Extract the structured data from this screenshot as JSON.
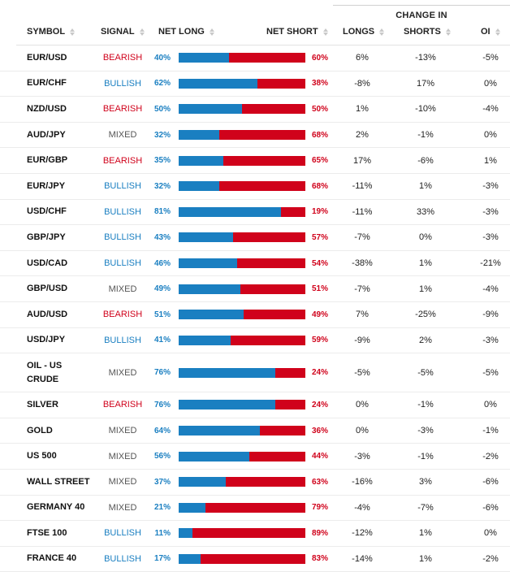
{
  "header": {
    "change_in": "CHANGE IN",
    "columns": {
      "symbol": "SYMBOL",
      "signal": "SIGNAL",
      "net_long": "NET LONG",
      "net_short": "NET SHORT",
      "longs": "LONGS",
      "shorts": "SHORTS",
      "oi": "OI"
    }
  },
  "colors": {
    "bullish": "#1a7fc1",
    "bearish": "#d0021b",
    "mixed": "#555555"
  },
  "rows": [
    {
      "symbol": "EUR/USD",
      "signal": "BEARISH",
      "net_long": "40%",
      "net_short": "60%",
      "long_value": 40,
      "longs": "6%",
      "shorts": "-13%",
      "oi": "-5%"
    },
    {
      "symbol": "EUR/CHF",
      "signal": "BULLISH",
      "net_long": "62%",
      "net_short": "38%",
      "long_value": 62,
      "longs": "-8%",
      "shorts": "17%",
      "oi": "0%"
    },
    {
      "symbol": "NZD/USD",
      "signal": "BEARISH",
      "net_long": "50%",
      "net_short": "50%",
      "long_value": 50,
      "longs": "1%",
      "shorts": "-10%",
      "oi": "-4%"
    },
    {
      "symbol": "AUD/JPY",
      "signal": "MIXED",
      "net_long": "32%",
      "net_short": "68%",
      "long_value": 32,
      "longs": "2%",
      "shorts": "-1%",
      "oi": "0%"
    },
    {
      "symbol": "EUR/GBP",
      "signal": "BEARISH",
      "net_long": "35%",
      "net_short": "65%",
      "long_value": 35,
      "longs": "17%",
      "shorts": "-6%",
      "oi": "1%"
    },
    {
      "symbol": "EUR/JPY",
      "signal": "BULLISH",
      "net_long": "32%",
      "net_short": "68%",
      "long_value": 32,
      "longs": "-11%",
      "shorts": "1%",
      "oi": "-3%"
    },
    {
      "symbol": "USD/CHF",
      "signal": "BULLISH",
      "net_long": "81%",
      "net_short": "19%",
      "long_value": 81,
      "longs": "-11%",
      "shorts": "33%",
      "oi": "-3%"
    },
    {
      "symbol": "GBP/JPY",
      "signal": "BULLISH",
      "net_long": "43%",
      "net_short": "57%",
      "long_value": 43,
      "longs": "-7%",
      "shorts": "0%",
      "oi": "-3%"
    },
    {
      "symbol": "USD/CAD",
      "signal": "BULLISH",
      "net_long": "46%",
      "net_short": "54%",
      "long_value": 46,
      "longs": "-38%",
      "shorts": "1%",
      "oi": "-21%"
    },
    {
      "symbol": "GBP/USD",
      "signal": "MIXED",
      "net_long": "49%",
      "net_short": "51%",
      "long_value": 49,
      "longs": "-7%",
      "shorts": "1%",
      "oi": "-4%"
    },
    {
      "symbol": "AUD/USD",
      "signal": "BEARISH",
      "net_long": "51%",
      "net_short": "49%",
      "long_value": 51,
      "longs": "7%",
      "shorts": "-25%",
      "oi": "-9%"
    },
    {
      "symbol": "USD/JPY",
      "signal": "BULLISH",
      "net_long": "41%",
      "net_short": "59%",
      "long_value": 41,
      "longs": "-9%",
      "shorts": "2%",
      "oi": "-3%"
    },
    {
      "symbol": "OIL - US CRUDE",
      "signal": "MIXED",
      "net_long": "76%",
      "net_short": "24%",
      "long_value": 76,
      "longs": "-5%",
      "shorts": "-5%",
      "oi": "-5%"
    },
    {
      "symbol": "SILVER",
      "signal": "BEARISH",
      "net_long": "76%",
      "net_short": "24%",
      "long_value": 76,
      "longs": "0%",
      "shorts": "-1%",
      "oi": "0%"
    },
    {
      "symbol": "GOLD",
      "signal": "MIXED",
      "net_long": "64%",
      "net_short": "36%",
      "long_value": 64,
      "longs": "0%",
      "shorts": "-3%",
      "oi": "-1%"
    },
    {
      "symbol": "US 500",
      "signal": "MIXED",
      "net_long": "56%",
      "net_short": "44%",
      "long_value": 56,
      "longs": "-3%",
      "shorts": "-1%",
      "oi": "-2%"
    },
    {
      "symbol": "WALL STREET",
      "signal": "MIXED",
      "net_long": "37%",
      "net_short": "63%",
      "long_value": 37,
      "longs": "-16%",
      "shorts": "3%",
      "oi": "-6%"
    },
    {
      "symbol": "GERMANY 40",
      "signal": "MIXED",
      "net_long": "21%",
      "net_short": "79%",
      "long_value": 21,
      "longs": "-4%",
      "shorts": "-7%",
      "oi": "-6%"
    },
    {
      "symbol": "FTSE 100",
      "signal": "BULLISH",
      "net_long": "11%",
      "net_short": "89%",
      "long_value": 11,
      "longs": "-12%",
      "shorts": "1%",
      "oi": "0%"
    },
    {
      "symbol": "FRANCE 40",
      "signal": "BULLISH",
      "net_long": "17%",
      "net_short": "83%",
      "long_value": 17,
      "longs": "-14%",
      "shorts": "1%",
      "oi": "-2%"
    }
  ]
}
